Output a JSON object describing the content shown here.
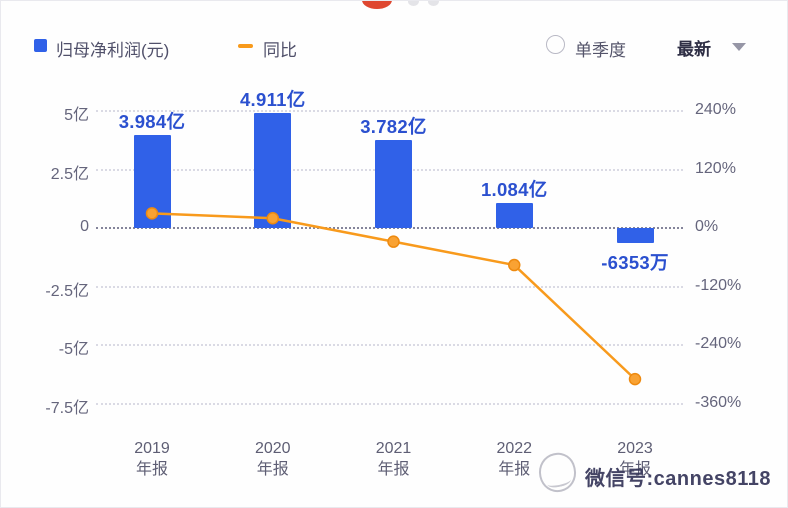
{
  "chrome": {
    "red_badge_color": "#df4730"
  },
  "legend": {
    "bar_label": "归母净利润(元)",
    "line_label": "同比",
    "bar_color": "#3061e8",
    "line_color": "#f89a1c"
  },
  "controls": {
    "quarter_radio_label": "单季度",
    "latest_dropdown_label": "最新"
  },
  "chart_data": {
    "type": "combo-bar-line",
    "categories": [
      {
        "year": "2019",
        "period": "年报"
      },
      {
        "year": "2020",
        "period": "年报"
      },
      {
        "year": "2021",
        "period": "年报"
      },
      {
        "year": "2022",
        "period": "年报"
      },
      {
        "year": "2023",
        "period": "年报"
      }
    ],
    "series": [
      {
        "name": "归母净利润(元)",
        "type": "bar",
        "axis": "left",
        "unit": "亿",
        "values": [
          3.984,
          4.911,
          3.782,
          1.084,
          -0.6353
        ],
        "labels": [
          "3.984亿",
          "4.911亿",
          "3.782亿",
          "1.084亿",
          "-6353万"
        ]
      },
      {
        "name": "同比",
        "type": "line",
        "axis": "right",
        "unit": "%",
        "values": [
          30,
          20,
          -28,
          -76,
          -310
        ]
      }
    ],
    "left_axis": {
      "unit": "亿",
      "ticks": [
        {
          "label": "5亿",
          "value": 5
        },
        {
          "label": "2.5亿",
          "value": 2.5
        },
        {
          "label": "0",
          "value": 0
        },
        {
          "label": "-2.5亿",
          "value": -2.5
        },
        {
          "label": "-5亿",
          "value": -5
        },
        {
          "label": "-7.5亿",
          "value": -7.5
        }
      ]
    },
    "right_axis": {
      "unit": "%",
      "ticks": [
        {
          "label": "240%",
          "value": 240
        },
        {
          "label": "120%",
          "value": 120
        },
        {
          "label": "0%",
          "value": 0
        },
        {
          "label": "-120%",
          "value": -120
        },
        {
          "label": "-240%",
          "value": -240
        },
        {
          "label": "-360%",
          "value": -360
        }
      ]
    },
    "legend_position": "top-left",
    "grid": "dotted-horizontal",
    "colors": {
      "bar": "#3061e8",
      "bar_label": "#2b50cf",
      "line": "#f89a1c",
      "marker_fill": "#f9a233",
      "marker_stroke": "#ee8a10"
    }
  },
  "watermark": {
    "text": "微信号:cannes8118"
  }
}
